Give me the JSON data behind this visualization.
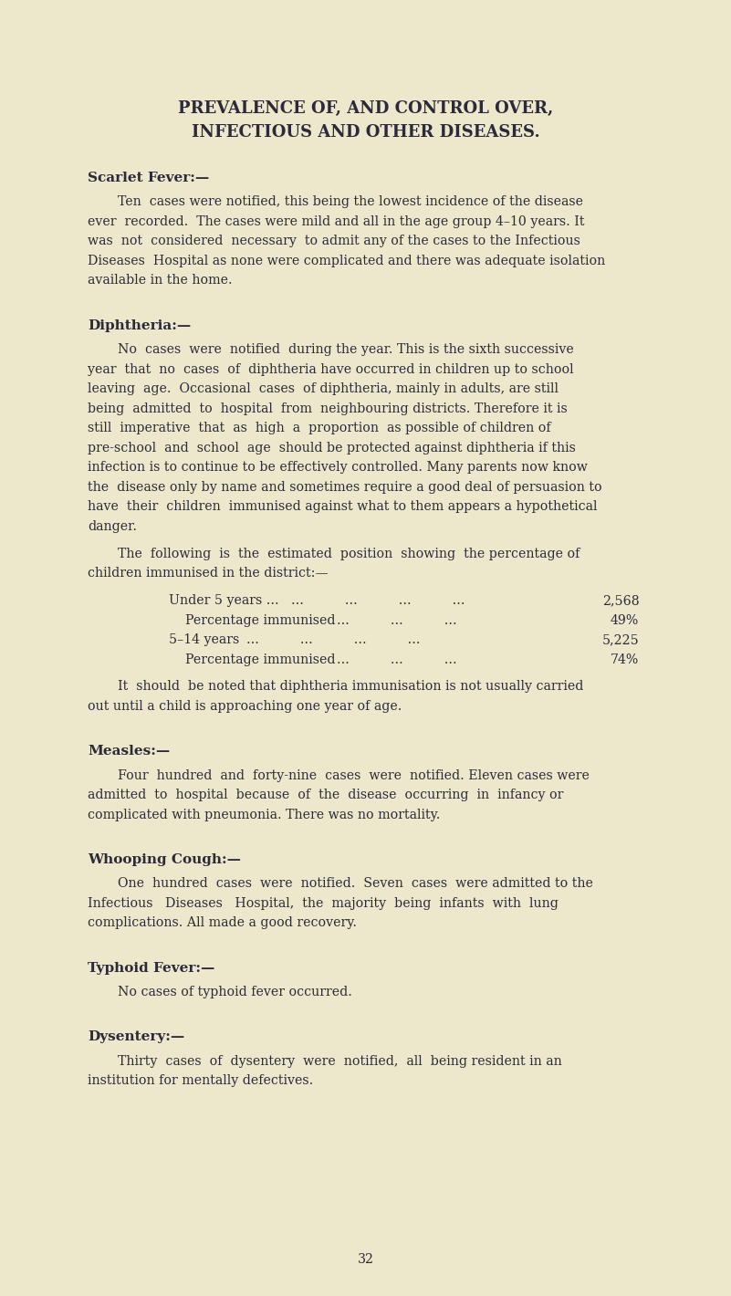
{
  "background_color": "#ede8cc",
  "title_line1": "PREVALENCE OF, AND CONTROL OVER,",
  "title_line2": "INFECTIOUS AND OTHER DISEASES.",
  "page_number": "32",
  "text_color": "#2a2a3a",
  "sections": [
    {
      "heading": "Scarlet Fever:—",
      "paragraphs": [
        "Ten cases were notified, this being the lowest incidence of the disease ever recorded.  The cases were mild and all in the age group 4–10 years.  It was not considered necessary to admit any of the cases to the Infectious Diseases Hospital as none were complicated and there was adequate isolation available in the home."
      ]
    },
    {
      "heading": "Diphtheria:—",
      "paragraphs": [
        "No cases were notified during the year.  This is the sixth successive year that no cases of diphtheria have occurred in children up to school leaving age.  Occasional cases of diphtheria, mainly in adults, are still being admitted to hospital from neighbouring districts.  Therefore it is still imperative that as high a proportion as possible of children of pre-school and school age should be protected against diphtheria if this infection is to continue to be effectively controlled.  Many parents now know the disease only by name and sometimes require a good deal of persuasion to have their children immunised against what to them appears a hypothetical danger.",
        "The following is the estimated position showing the percentage of children immunised in the district:—",
        "IMMUNISATION_TABLE",
        "It should be noted that diphtheria immunisation is not usually carried out until a child is approaching one year of age."
      ]
    },
    {
      "heading": "Measles:—",
      "paragraphs": [
        "Four hundred and forty-nine cases were notified.  Eleven cases were admitted to hospital because of the disease occurring in infancy or complicated with pneumonia.  There was no mortality."
      ]
    },
    {
      "heading": "Whooping Cough:—",
      "paragraphs": [
        "One hundred cases were notified.  Seven cases were admitted to the Infectious Diseases Hospital, the majority being infants with lung complications.  All made a good recovery."
      ]
    },
    {
      "heading": "Typhoid Fever:—",
      "paragraphs": [
        "No cases of typhoid fever occurred."
      ]
    },
    {
      "heading": "Dysentery:—",
      "paragraphs": [
        "Thirty cases of dysentery were notified, all being resident in an institution for mentally defectives."
      ]
    }
  ]
}
